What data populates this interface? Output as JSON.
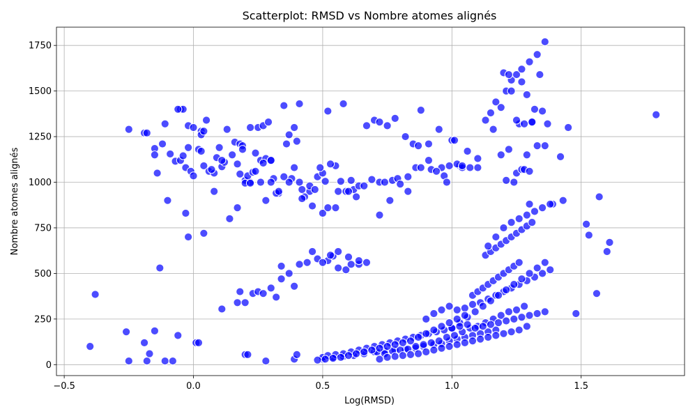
{
  "chart_data": {
    "type": "scatter",
    "title": "Scatterplot: RMSD vs Nombre atomes alignés",
    "xlabel": "Log(RMSD)",
    "ylabel": "Nombre atomes alignés",
    "xlim": [
      -0.53,
      1.9
    ],
    "ylim": [
      -60,
      1850
    ],
    "xticks": [
      -0.5,
      0.0,
      0.5,
      1.0,
      1.5
    ],
    "xtick_labels": [
      "−0.5",
      "0.0",
      "0.5",
      "1.0",
      "1.5"
    ],
    "yticks": [
      0,
      250,
      500,
      750,
      1000,
      1250,
      1500,
      1750
    ],
    "ytick_labels": [
      "0",
      "250",
      "500",
      "750",
      "1000",
      "1250",
      "1500",
      "1750"
    ],
    "grid": true,
    "marker_color": "#0000ff",
    "marker_alpha": 0.7,
    "x": [
      -0.25,
      -0.19,
      -0.18,
      -0.15,
      -0.11,
      -0.05,
      -0.04,
      -0.02,
      0.0,
      0.03,
      -0.12,
      -0.09,
      -0.15,
      -0.14,
      -0.07,
      -0.05,
      -0.03,
      -0.04,
      -0.02,
      -0.01,
      0.02,
      0.03,
      0.04,
      0.06,
      0.08,
      0.09,
      0.11,
      0.13,
      0.16,
      0.18,
      0.2,
      0.22,
      0.25,
      0.27,
      0.29,
      0.31,
      0.33,
      0.36,
      0.39,
      0.41,
      0.03,
      0.05,
      0.07,
      0.1,
      0.12,
      0.15,
      0.17,
      0.19,
      0.21,
      0.23,
      0.26,
      0.28,
      0.3,
      0.32,
      0.35,
      0.37,
      0.4,
      0.42,
      0.45,
      0.48,
      0.5,
      0.52,
      0.55,
      0.58,
      0.61,
      0.63,
      0.67,
      0.7,
      0.72,
      0.75,
      0.78,
      0.82,
      0.85,
      0.88,
      0.91,
      0.95,
      0.97,
      1.0,
      1.03,
      1.06,
      0.18,
      0.2,
      0.22,
      0.24,
      0.26,
      0.28,
      0.3,
      0.33,
      0.35,
      0.38,
      0.41,
      0.43,
      0.45,
      0.47,
      0.49,
      0.51,
      0.53,
      0.56,
      0.59,
      0.62,
      -0.13,
      -0.1,
      -0.06,
      -0.03,
      0.0,
      0.04,
      0.08,
      0.11,
      0.14,
      0.17,
      0.19,
      0.22,
      0.24,
      0.27,
      0.3,
      0.34,
      0.37,
      0.39,
      0.42,
      0.46,
      -0.4,
      -0.38,
      -0.26,
      -0.25,
      -0.19,
      -0.18,
      -0.17,
      -0.15,
      -0.11,
      -0.08,
      -0.06,
      -0.02,
      0.01,
      0.02,
      0.04,
      0.11,
      0.17,
      0.2,
      0.21,
      0.28,
      0.39,
      0.4,
      0.5,
      0.52,
      0.55,
      0.57,
      0.6,
      0.64,
      0.66,
      0.69,
      0.72,
      0.74,
      0.77,
      0.79,
      0.83,
      0.86,
      0.88,
      0.92,
      0.96,
      0.99,
      1.02,
      1.04,
      1.07,
      1.1,
      0.5,
      0.54,
      0.58,
      0.62,
      0.66,
      0.7,
      0.74,
      0.78,
      0.82,
      0.86,
      0.89,
      0.93,
      0.96,
      0.99,
      1.02,
      1.05,
      1.08,
      1.11,
      1.14,
      1.17,
      0.71,
      0.74,
      0.77,
      0.8,
      0.83,
      0.86,
      0.89,
      0.92,
      0.95,
      0.98,
      1.01,
      1.04,
      1.07,
      1.1,
      1.13,
      1.16,
      1.19,
      1.22,
      1.25,
      1.28,
      0.9,
      0.93,
      0.96,
      0.99,
      1.02,
      1.05,
      1.08,
      1.11,
      1.14,
      1.17,
      1.2,
      1.23,
      1.26,
      1.29,
      1.32,
      1.35,
      1.38,
      1.0,
      1.03,
      1.06,
      1.09,
      1.12,
      1.15,
      1.18,
      1.21,
      1.24,
      1.27,
      1.3,
      1.33,
      1.36,
      1.08,
      1.1,
      1.12,
      1.14,
      1.16,
      1.18,
      1.2,
      1.22,
      1.24,
      1.26,
      1.13,
      1.15,
      1.17,
      1.19,
      1.21,
      1.23,
      1.25,
      1.27,
      1.29,
      1.31,
      1.15,
      1.17,
      1.19,
      1.21,
      1.23,
      1.25,
      1.27,
      1.3,
      1.33,
      1.36,
      0.52,
      0.54,
      0.56,
      0.6,
      0.64,
      0.67,
      0.72,
      0.76,
      0.8,
      0.83,
      0.87,
      0.91,
      0.94,
      0.98,
      1.01,
      1.04,
      1.1,
      1.13,
      1.16,
      1.19,
      1.21,
      1.23,
      1.25,
      1.27,
      1.29,
      1.31,
      1.33,
      1.35,
      1.37,
      1.39,
      1.45,
      1.42,
      1.52,
      1.53,
      1.56,
      1.57,
      1.6,
      1.61,
      1.79,
      1.48,
      0.72,
      0.75,
      0.78,
      0.81,
      0.84,
      0.87,
      0.9,
      0.93,
      0.96,
      0.99,
      1.02,
      1.05,
      1.08,
      1.11,
      1.14,
      1.17,
      1.2,
      1.23,
      1.26,
      1.29,
      1.22,
      1.24,
      1.26,
      1.28,
      1.3,
      1.32,
      1.2,
      1.22,
      1.25,
      1.28,
      1.3,
      1.34,
      1.36,
      1.31,
      1.29,
      1.27,
      0.5,
      0.52,
      0.55,
      0.58,
      0.61,
      0.64,
      0.67,
      0.7,
      0.73,
      0.76,
      0.79,
      0.82,
      0.85,
      0.88,
      0.91,
      0.94,
      0.97,
      1.0,
      1.03,
      1.06,
      0.48,
      0.51,
      0.54,
      0.57,
      0.6,
      0.63,
      0.66,
      0.69,
      0.72,
      0.75,
      0.78,
      0.81,
      0.84,
      0.87,
      0.9,
      0.93,
      0.96,
      0.99,
      1.02,
      1.05,
      1.09,
      1.12,
      1.15,
      1.18,
      1.21,
      1.24,
      1.27,
      1.3,
      1.33,
      1.36,
      1.14,
      1.17,
      1.2,
      1.23,
      1.26,
      1.29,
      1.32,
      1.35,
      1.38,
      1.43,
      0.18,
      0.2,
      0.23,
      0.25,
      0.27,
      0.3,
      0.32,
      0.34,
      0.37,
      0.39,
      0.41,
      0.44,
      0.46,
      0.48,
      0.5,
      0.53,
      0.56,
      0.59,
      0.61,
      0.64
    ],
    "y": [
      1290,
      1270,
      1270,
      1185,
      1320,
      1400,
      1400,
      1310,
      1300,
      1280,
      1210,
      1155,
      1150,
      1050,
      1115,
      1120,
      1080,
      1145,
      1190,
      1060,
      1180,
      1170,
      1090,
      1060,
      1050,
      1135,
      1085,
      1290,
      1220,
      1210,
      1010,
      1000,
      1300,
      1310,
      1330,
      1020,
      940,
      1210,
      1300,
      1430,
      1260,
      1340,
      1070,
      1190,
      1110,
      1150,
      1100,
      1200,
      1035,
      1055,
      1120,
      1130,
      1120,
      940,
      1420,
      1260,
      1225,
      960,
      950,
      1030,
      1050,
      1390,
      1090,
      1430,
      1010,
      920,
      1310,
      1340,
      1330,
      1310,
      1350,
      1250,
      1210,
      1395,
      1210,
      1290,
      1035,
      1230,
      1090,
      1170,
      1045,
      995,
      995,
      1060,
      1000,
      900,
      1000,
      950,
      1030,
      1020,
      1000,
      920,
      980,
      960,
      1080,
      1005,
      1100,
      950,
      950,
      960,
      530,
      900,
      1400,
      830,
      1035,
      1280,
      950,
      1120,
      800,
      860,
      1180,
      1300,
      1160,
      1105,
      1120,
      540,
      1000,
      1080,
      910,
      870,
      100,
      385,
      180,
      20,
      120,
      20,
      60,
      185,
      20,
      20,
      160,
      700,
      120,
      120,
      720,
      305,
      340,
      55,
      55,
      20,
      30,
      55,
      830,
      860,
      860,
      1005,
      950,
      980,
      980,
      1015,
      1000,
      1000,
      1010,
      1020,
      1030,
      1080,
      1080,
      1070,
      1080,
      1090,
      1100,
      1080,
      1080,
      1080,
      30,
      40,
      45,
      50,
      60,
      70,
      75,
      80,
      85,
      90,
      100,
      110,
      115,
      130,
      140,
      150,
      160,
      170,
      180,
      190,
      70,
      60,
      75,
      80,
      85,
      100,
      110,
      120,
      130,
      150,
      160,
      180,
      200,
      210,
      230,
      250,
      270,
      290,
      300,
      320,
      250,
      280,
      300,
      320,
      300,
      310,
      330,
      340,
      360,
      380,
      400,
      420,
      440,
      460,
      480,
      500,
      520,
      200,
      230,
      260,
      290,
      320,
      350,
      380,
      410,
      440,
      470,
      500,
      530,
      560,
      380,
      400,
      420,
      440,
      460,
      480,
      500,
      520,
      540,
      560,
      600,
      620,
      640,
      660,
      680,
      700,
      720,
      740,
      760,
      780,
      1380,
      1440,
      1410,
      1500,
      1560,
      1590,
      1620,
      1660,
      1700,
      1770,
      570,
      595,
      620,
      590,
      550,
      560,
      820,
      900,
      990,
      950,
      1200,
      1120,
      1060,
      1000,
      1230,
      1090,
      1130,
      1340,
      1290,
      1150,
      1010,
      1500,
      1050,
      1070,
      1150,
      1330,
      1200,
      1390,
      1320,
      880,
      1300,
      1140,
      770,
      710,
      390,
      920,
      620,
      670,
      1370,
      280,
      30,
      40,
      45,
      50,
      55,
      60,
      70,
      80,
      90,
      100,
      110,
      120,
      130,
      140,
      150,
      160,
      170,
      180,
      190,
      210,
      1180,
      1000,
      1320,
      1070,
      880,
      1400,
      1600,
      1590,
      1340,
      1320,
      1060,
      1590,
      1200,
      1330,
      1480,
      1550,
      40,
      50,
      55,
      60,
      70,
      80,
      90,
      100,
      110,
      120,
      130,
      140,
      150,
      160,
      170,
      180,
      190,
      200,
      210,
      220,
      25,
      30,
      35,
      40,
      50,
      60,
      70,
      80,
      90,
      100,
      110,
      120,
      130,
      150,
      170,
      190,
      210,
      230,
      250,
      270,
      200,
      210,
      220,
      230,
      240,
      250,
      260,
      270,
      280,
      290,
      650,
      700,
      750,
      780,
      800,
      820,
      840,
      860,
      880,
      900,
      400,
      340,
      390,
      400,
      390,
      420,
      370,
      470,
      500,
      430,
      550,
      560,
      620,
      580,
      560,
      600,
      530,
      520,
      550,
      570
    ]
  }
}
